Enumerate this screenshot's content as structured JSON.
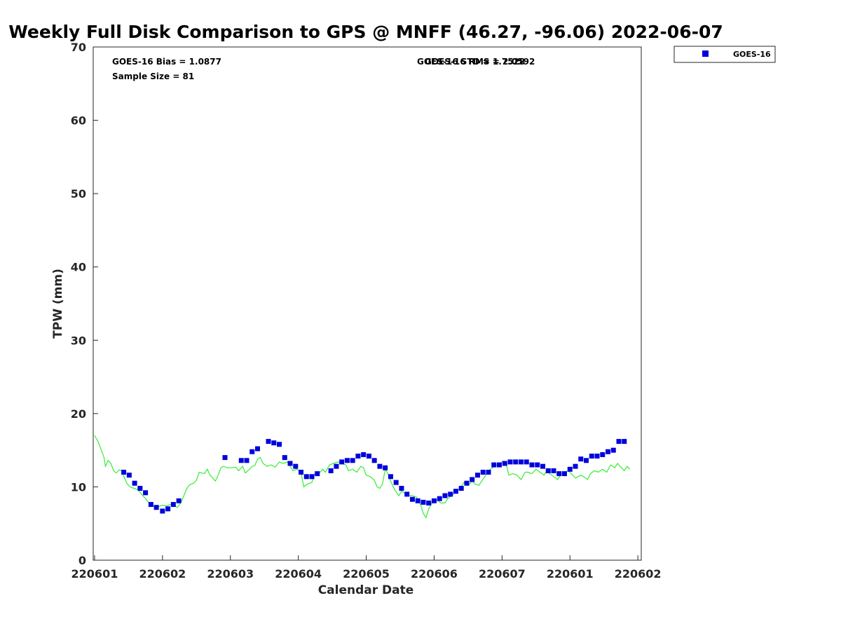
{
  "chart_data": {
    "type": "scatter",
    "title": "Weekly Full Disk Comparison to GPS @ MNFF (46.27, -96.06) 2022-06-07",
    "xlabel": "Calendar Date",
    "ylabel": "TPW (mm)",
    "xlim": [
      -0.02,
      8.05
    ],
    "ylim": [
      0,
      70
    ],
    "yticks": [
      0,
      10,
      20,
      30,
      40,
      50,
      60,
      70
    ],
    "xticks": [
      {
        "x": 0,
        "label": "220601"
      },
      {
        "x": 1,
        "label": "220602"
      },
      {
        "x": 2,
        "label": "220603"
      },
      {
        "x": 3,
        "label": "220604"
      },
      {
        "x": 4,
        "label": "220605"
      },
      {
        "x": 5,
        "label": "220606"
      },
      {
        "x": 6,
        "label": "220607"
      },
      {
        "x": 7,
        "label": "220601"
      },
      {
        "x": 8,
        "label": "220602"
      }
    ],
    "grid": false,
    "legend_position": "top-right",
    "annotations": {
      "bias": "GOES-16 Bias = 1.0877",
      "sample_size": "Sample Size = 81",
      "std": "GOES-16 STD = 1.7528",
      "rms": "GOES-16 RMS = 2.0592"
    },
    "series": [
      {
        "name": "GOES-16",
        "kind": "scatter",
        "color": "#0000dd",
        "points": [
          [
            0.43,
            12.0
          ],
          [
            0.51,
            11.6
          ],
          [
            0.59,
            10.5
          ],
          [
            0.67,
            9.8
          ],
          [
            0.75,
            9.2
          ],
          [
            0.83,
            7.6
          ],
          [
            0.91,
            7.2
          ],
          [
            1.0,
            6.7
          ],
          [
            1.08,
            7.0
          ],
          [
            1.16,
            7.6
          ],
          [
            1.24,
            8.1
          ],
          [
            1.92,
            14.0
          ],
          [
            2.16,
            13.6
          ],
          [
            2.24,
            13.6
          ],
          [
            2.32,
            14.8
          ],
          [
            2.4,
            15.2
          ],
          [
            2.56,
            16.2
          ],
          [
            2.64,
            16.0
          ],
          [
            2.72,
            15.8
          ],
          [
            2.8,
            14.0
          ],
          [
            2.88,
            13.2
          ],
          [
            2.96,
            12.8
          ],
          [
            3.04,
            12.0
          ],
          [
            3.12,
            11.4
          ],
          [
            3.2,
            11.4
          ],
          [
            3.28,
            11.8
          ],
          [
            3.48,
            12.2
          ],
          [
            3.56,
            12.8
          ],
          [
            3.64,
            13.4
          ],
          [
            3.72,
            13.6
          ],
          [
            3.8,
            13.6
          ],
          [
            3.88,
            14.2
          ],
          [
            3.96,
            14.4
          ],
          [
            4.04,
            14.2
          ],
          [
            4.12,
            13.6
          ],
          [
            4.2,
            12.8
          ],
          [
            4.28,
            12.6
          ],
          [
            4.36,
            11.4
          ],
          [
            4.44,
            10.6
          ],
          [
            4.52,
            9.8
          ],
          [
            4.6,
            9.0
          ],
          [
            4.68,
            8.3
          ],
          [
            4.76,
            8.1
          ],
          [
            4.84,
            7.9
          ],
          [
            4.92,
            7.8
          ],
          [
            5.0,
            8.1
          ],
          [
            5.08,
            8.4
          ],
          [
            5.16,
            8.8
          ],
          [
            5.24,
            9.0
          ],
          [
            5.32,
            9.4
          ],
          [
            5.4,
            9.8
          ],
          [
            5.48,
            10.5
          ],
          [
            5.56,
            11.0
          ],
          [
            5.64,
            11.6
          ],
          [
            5.72,
            12.0
          ],
          [
            5.8,
            12.0
          ],
          [
            5.88,
            13.0
          ],
          [
            5.96,
            13.0
          ],
          [
            6.04,
            13.2
          ],
          [
            6.12,
            13.4
          ],
          [
            6.2,
            13.4
          ],
          [
            6.28,
            13.4
          ],
          [
            6.36,
            13.4
          ],
          [
            6.44,
            13.0
          ],
          [
            6.52,
            13.0
          ],
          [
            6.6,
            12.8
          ],
          [
            6.68,
            12.2
          ],
          [
            6.76,
            12.2
          ],
          [
            6.84,
            11.8
          ],
          [
            6.92,
            11.8
          ],
          [
            7.0,
            12.4
          ],
          [
            7.08,
            12.8
          ],
          [
            7.16,
            13.8
          ],
          [
            7.24,
            13.6
          ],
          [
            7.32,
            14.2
          ],
          [
            7.4,
            14.2
          ],
          [
            7.48,
            14.4
          ],
          [
            7.56,
            14.8
          ],
          [
            7.64,
            15.0
          ],
          [
            7.72,
            16.2
          ],
          [
            7.8,
            16.2
          ]
        ]
      },
      {
        "name": "",
        "kind": "line",
        "color": "#33ee33",
        "points": [
          [
            0.0,
            17.0
          ],
          [
            0.05,
            16.2
          ],
          [
            0.1,
            15.0
          ],
          [
            0.14,
            14.0
          ],
          [
            0.16,
            12.8
          ],
          [
            0.2,
            13.6
          ],
          [
            0.24,
            13.2
          ],
          [
            0.28,
            12.2
          ],
          [
            0.32,
            11.9
          ],
          [
            0.36,
            12.3
          ],
          [
            0.4,
            12.2
          ],
          [
            0.44,
            11.2
          ],
          [
            0.48,
            10.4
          ],
          [
            0.52,
            10.0
          ],
          [
            0.58,
            9.8
          ],
          [
            0.64,
            9.6
          ],
          [
            0.7,
            8.9
          ],
          [
            0.76,
            8.3
          ],
          [
            0.82,
            7.6
          ],
          [
            0.88,
            7.3
          ],
          [
            0.94,
            7.3
          ],
          [
            1.0,
            7.5
          ],
          [
            1.06,
            7.4
          ],
          [
            1.12,
            7.6
          ],
          [
            1.18,
            7.4
          ],
          [
            1.22,
            7.2
          ],
          [
            1.28,
            8.0
          ],
          [
            1.32,
            8.9
          ],
          [
            1.36,
            9.8
          ],
          [
            1.4,
            10.3
          ],
          [
            1.46,
            10.5
          ],
          [
            1.5,
            10.9
          ],
          [
            1.54,
            12.0
          ],
          [
            1.58,
            11.9
          ],
          [
            1.62,
            11.8
          ],
          [
            1.66,
            12.4
          ],
          [
            1.7,
            11.6
          ],
          [
            1.74,
            11.2
          ],
          [
            1.78,
            10.8
          ],
          [
            1.82,
            11.6
          ],
          [
            1.86,
            12.6
          ],
          [
            1.9,
            12.8
          ],
          [
            1.96,
            12.6
          ],
          [
            2.02,
            12.6
          ],
          [
            2.08,
            12.7
          ],
          [
            2.12,
            12.2
          ],
          [
            2.18,
            12.8
          ],
          [
            2.22,
            11.9
          ],
          [
            2.28,
            12.4
          ],
          [
            2.32,
            12.8
          ],
          [
            2.36,
            12.9
          ],
          [
            2.4,
            13.8
          ],
          [
            2.44,
            14.0
          ],
          [
            2.48,
            13.2
          ],
          [
            2.54,
            12.8
          ],
          [
            2.6,
            13.0
          ],
          [
            2.66,
            12.7
          ],
          [
            2.72,
            13.4
          ],
          [
            2.78,
            13.2
          ],
          [
            2.84,
            13.4
          ],
          [
            2.88,
            12.8
          ],
          [
            2.92,
            12.2
          ],
          [
            2.98,
            12.4
          ],
          [
            3.04,
            12.0
          ],
          [
            3.08,
            10.0
          ],
          [
            3.14,
            10.4
          ],
          [
            3.2,
            10.6
          ],
          [
            3.24,
            11.8
          ],
          [
            3.28,
            11.6
          ],
          [
            3.32,
            12.0
          ],
          [
            3.36,
            12.4
          ],
          [
            3.4,
            12.0
          ],
          [
            3.46,
            13.0
          ],
          [
            3.52,
            13.2
          ],
          [
            3.58,
            13.4
          ],
          [
            3.64,
            13.2
          ],
          [
            3.7,
            13.0
          ],
          [
            3.74,
            12.2
          ],
          [
            3.8,
            12.4
          ],
          [
            3.86,
            12.0
          ],
          [
            3.92,
            12.8
          ],
          [
            3.96,
            12.6
          ],
          [
            4.0,
            11.6
          ],
          [
            4.06,
            11.4
          ],
          [
            4.12,
            10.9
          ],
          [
            4.16,
            10.0
          ],
          [
            4.2,
            9.8
          ],
          [
            4.24,
            10.4
          ],
          [
            4.28,
            12.4
          ],
          [
            4.32,
            11.8
          ],
          [
            4.36,
            10.8
          ],
          [
            4.42,
            9.6
          ],
          [
            4.48,
            8.8
          ],
          [
            4.52,
            9.4
          ],
          [
            4.56,
            9.2
          ],
          [
            4.62,
            8.8
          ],
          [
            4.68,
            8.8
          ],
          [
            4.74,
            8.6
          ],
          [
            4.8,
            7.6
          ],
          [
            4.84,
            6.4
          ],
          [
            4.88,
            5.8
          ],
          [
            4.92,
            7.0
          ],
          [
            4.98,
            8.0
          ],
          [
            5.04,
            8.2
          ],
          [
            5.1,
            7.8
          ],
          [
            5.16,
            7.8
          ],
          [
            5.2,
            8.4
          ],
          [
            5.26,
            8.8
          ],
          [
            5.32,
            9.4
          ],
          [
            5.38,
            9.8
          ],
          [
            5.44,
            10.6
          ],
          [
            5.5,
            10.2
          ],
          [
            5.56,
            10.8
          ],
          [
            5.6,
            10.4
          ],
          [
            5.66,
            10.2
          ],
          [
            5.7,
            10.8
          ],
          [
            5.76,
            11.6
          ],
          [
            5.8,
            12.2
          ],
          [
            5.86,
            12.6
          ],
          [
            5.92,
            13.0
          ],
          [
            5.96,
            12.8
          ],
          [
            6.0,
            13.4
          ],
          [
            6.06,
            13.2
          ],
          [
            6.1,
            11.6
          ],
          [
            6.16,
            11.8
          ],
          [
            6.22,
            11.6
          ],
          [
            6.28,
            11.0
          ],
          [
            6.34,
            12.0
          ],
          [
            6.38,
            12.0
          ],
          [
            6.44,
            11.8
          ],
          [
            6.5,
            12.4
          ],
          [
            6.56,
            12.0
          ],
          [
            6.62,
            11.6
          ],
          [
            6.66,
            12.2
          ],
          [
            6.7,
            11.8
          ],
          [
            6.76,
            11.4
          ],
          [
            6.82,
            11.0
          ],
          [
            6.86,
            11.6
          ],
          [
            6.92,
            12.0
          ],
          [
            6.98,
            12.2
          ],
          [
            7.02,
            11.8
          ],
          [
            7.08,
            11.2
          ],
          [
            7.12,
            11.4
          ],
          [
            7.16,
            11.6
          ],
          [
            7.2,
            11.4
          ],
          [
            7.26,
            11.0
          ],
          [
            7.3,
            11.8
          ],
          [
            7.36,
            12.2
          ],
          [
            7.42,
            12.0
          ],
          [
            7.48,
            12.4
          ],
          [
            7.54,
            12.0
          ],
          [
            7.6,
            13.0
          ],
          [
            7.66,
            12.6
          ],
          [
            7.7,
            13.2
          ],
          [
            7.76,
            12.6
          ],
          [
            7.8,
            12.2
          ],
          [
            7.84,
            12.8
          ],
          [
            7.88,
            12.4
          ]
        ]
      }
    ]
  }
}
